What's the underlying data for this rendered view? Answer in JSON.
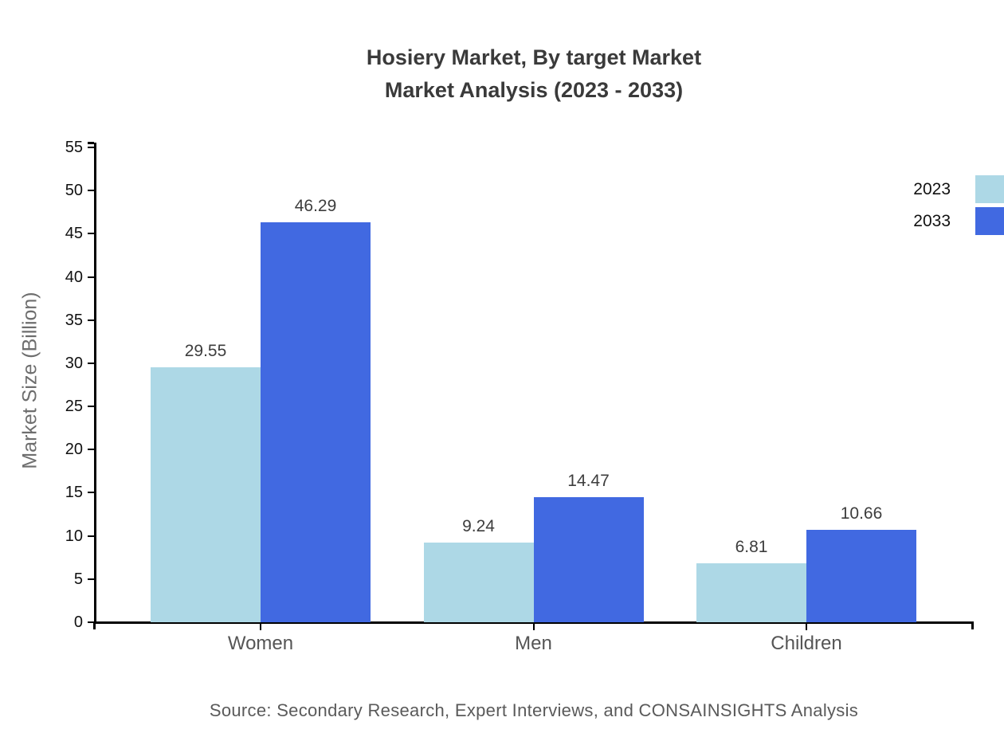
{
  "chart_data": {
    "type": "bar",
    "title_lines": [
      "Hosiery Market, By target Market",
      "Market Analysis (2023 - 2033)"
    ],
    "ylabel": "Market Size (Billion)",
    "categories": [
      "Women",
      "Men",
      "Children"
    ],
    "series": [
      {
        "name": "2023",
        "color": "#add8e6",
        "values": [
          29.55,
          9.24,
          6.81
        ]
      },
      {
        "name": "2033",
        "color": "#4169e1",
        "values": [
          46.29,
          14.47,
          10.66
        ]
      }
    ],
    "ylim": [
      0,
      55
    ],
    "ytick_step": 5,
    "ytick_labels": [
      "0",
      "5",
      "10",
      "15",
      "20",
      "25",
      "30",
      "35",
      "40",
      "45",
      "50",
      "55"
    ],
    "value_labels": [
      [
        "29.55",
        "9.24",
        "6.81"
      ],
      [
        "46.29",
        "14.47",
        "10.66"
      ]
    ],
    "grid": false,
    "legend_position": "top-right",
    "source": "Source: Secondary Research, Expert Interviews, and CONSAINSIGHTS Analysis"
  },
  "palette": {
    "series_2023": "#add8e6",
    "series_2033": "#4169e1",
    "title_text": "#3a3a3a",
    "axis": "#000000",
    "tick_text": "#111111",
    "category_text": "#555555",
    "value_text": "#3d3d3d",
    "ylabel_text": "#6e6e6e",
    "source_text": "#5a5a5a",
    "background": "#ffffff"
  }
}
